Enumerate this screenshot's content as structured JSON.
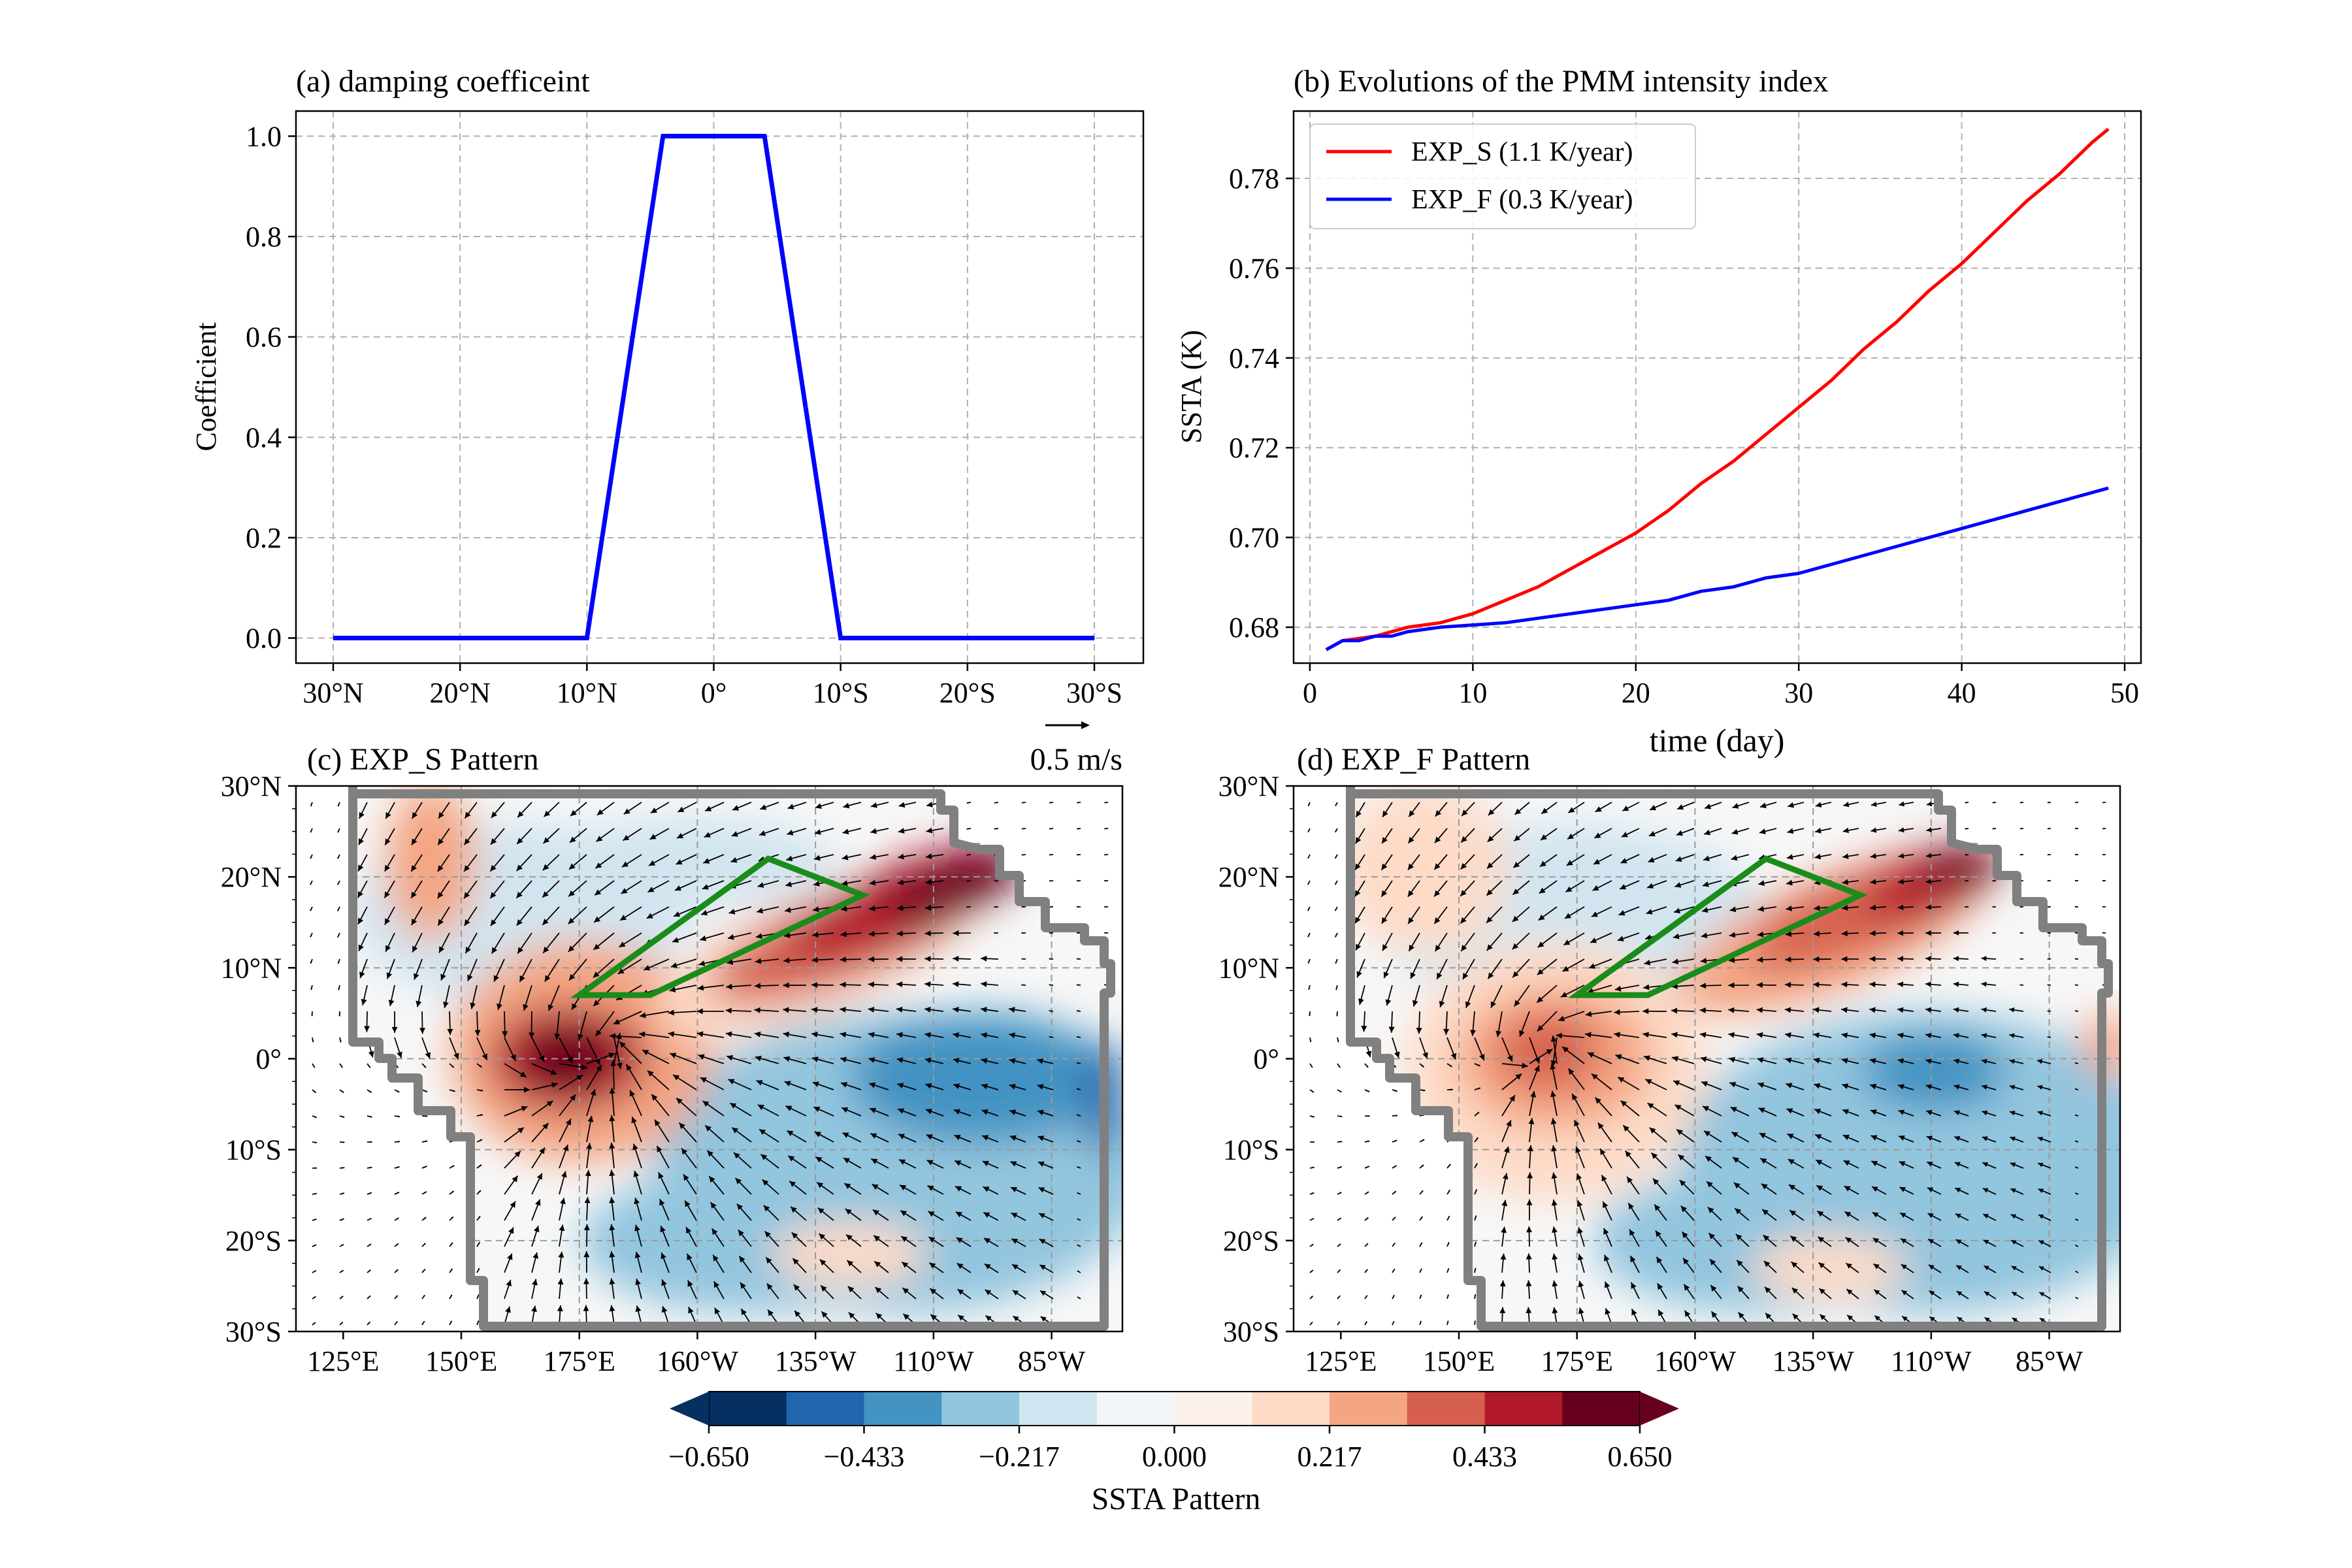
{
  "chart_data": [
    {
      "id": "a",
      "type": "line",
      "title": "(a) damping coefficeint",
      "ylabel": "Coefficient",
      "xlabel": "",
      "x_ticklabels": [
        "30°N",
        "20°N",
        "10°N",
        "0°",
        "10°S",
        "20°S",
        "30°S"
      ],
      "x_tickvalues": [
        30,
        20,
        10,
        0,
        -10,
        -20,
        -30
      ],
      "xlim": [
        30,
        -30
      ],
      "ylim": [
        -0.05,
        1.05
      ],
      "y_ticks": [
        0.0,
        0.2,
        0.4,
        0.6,
        0.8,
        1.0
      ],
      "y_ticklabels": [
        "0.0",
        "0.2",
        "0.4",
        "0.6",
        "0.8",
        "1.0"
      ],
      "grid": true,
      "series": [
        {
          "color": "#0000ff",
          "x": [
            30,
            10,
            4,
            -4,
            -10,
            -30
          ],
          "y": [
            0,
            0,
            1,
            1,
            0,
            0
          ]
        }
      ]
    },
    {
      "id": "b",
      "type": "line",
      "title": "(b) Evolutions of the PMM intensity index",
      "xlabel": "time (day)",
      "ylabel": "SSTA (K)",
      "xlim": [
        -1,
        51
      ],
      "ylim": [
        0.672,
        0.795
      ],
      "x_ticks": [
        0,
        10,
        20,
        30,
        40,
        50
      ],
      "y_ticks": [
        0.68,
        0.7,
        0.72,
        0.74,
        0.76,
        0.78
      ],
      "y_ticklabels": [
        "0.68",
        "0.70",
        "0.72",
        "0.74",
        "0.76",
        "0.78"
      ],
      "grid": true,
      "legend": "top-left",
      "series": [
        {
          "name": "EXP_S (1.1 K/year)",
          "color": "#ff0000",
          "x": [
            1,
            2,
            3,
            4,
            5,
            6,
            8,
            10,
            12,
            14,
            16,
            18,
            20,
            22,
            24,
            26,
            28,
            30,
            32,
            34,
            36,
            38,
            40,
            42,
            44,
            46,
            48,
            49
          ],
          "y": [
            0.675,
            0.677,
            0.6775,
            0.678,
            0.679,
            0.68,
            0.681,
            0.683,
            0.686,
            0.689,
            0.693,
            0.697,
            0.701,
            0.706,
            0.712,
            0.717,
            0.723,
            0.729,
            0.735,
            0.742,
            0.748,
            0.755,
            0.761,
            0.768,
            0.775,
            0.781,
            0.788,
            0.791
          ]
        },
        {
          "name": "EXP_F (0.3 K/year)",
          "color": "#0000ff",
          "x": [
            1,
            2,
            3,
            4,
            5,
            6,
            8,
            10,
            12,
            14,
            16,
            18,
            20,
            22,
            24,
            26,
            28,
            30,
            32,
            34,
            36,
            38,
            40,
            42,
            44,
            46,
            48,
            49
          ],
          "y": [
            0.675,
            0.677,
            0.677,
            0.678,
            0.678,
            0.679,
            0.68,
            0.6805,
            0.681,
            0.682,
            0.683,
            0.684,
            0.685,
            0.686,
            0.688,
            0.689,
            0.691,
            0.692,
            0.694,
            0.696,
            0.698,
            0.7,
            0.702,
            0.704,
            0.706,
            0.708,
            0.71,
            0.711
          ]
        }
      ]
    },
    {
      "id": "c",
      "type": "heatmap",
      "title": "(c) EXP_S Pattern",
      "ref_vector_label": "0.5 m/s",
      "x_ticklabels": [
        "125°E",
        "150°E",
        "175°E",
        "160°W",
        "135°W",
        "110°W",
        "85°W"
      ],
      "y_ticklabels": [
        "30°N",
        "20°N",
        "10°N",
        "0°",
        "10°S",
        "20°S",
        "30°S"
      ],
      "lon_range": [
        115,
        290
      ],
      "lat_range": [
        -30,
        30
      ],
      "grid": true,
      "box_corners_lon_lat": [
        [
          175,
          7
        ],
        [
          215,
          22
        ],
        [
          235,
          18
        ],
        [
          190,
          7
        ]
      ],
      "box_color": "#1a8c1a",
      "wind_convergence_center_lon_lat": [
        185,
        2
      ],
      "note": "SSTA shading approximated; warm tongue from ~150E,0 toward 110W,20N; cold band across southeast Pacific"
    },
    {
      "id": "d",
      "type": "heatmap",
      "title": "(d) EXP_F Pattern",
      "x_ticklabels": [
        "125°E",
        "150°E",
        "175°E",
        "160°W",
        "135°W",
        "110°W",
        "85°W"
      ],
      "y_ticklabels": [
        "30°N",
        "20°N",
        "10°N",
        "0°",
        "10°S",
        "20°S",
        "30°S"
      ],
      "lon_range": [
        115,
        290
      ],
      "lat_range": [
        -30,
        30
      ],
      "grid": true,
      "box_corners_lon_lat": [
        [
          175,
          7
        ],
        [
          215,
          22
        ],
        [
          235,
          18
        ],
        [
          190,
          7
        ]
      ],
      "box_color": "#1a8c1a",
      "wind_convergence_center_lon_lat": [
        172,
        2
      ],
      "note": "weaker warm tongue; cold anomalies in eastern Pacific"
    }
  ],
  "colorbar": {
    "label": "SSTA Pattern",
    "ticklabels": [
      "−0.650",
      "−0.433",
      "−0.217",
      "0.000",
      "0.217",
      "0.433",
      "0.650"
    ],
    "levels": [
      -0.65,
      -0.542,
      -0.433,
      -0.325,
      -0.217,
      -0.108,
      0.0,
      0.108,
      0.217,
      0.325,
      0.433,
      0.542,
      0.65
    ],
    "colors": [
      "#053061",
      "#2166ac",
      "#4393c3",
      "#92c5de",
      "#d1e5f0",
      "#f1f5f8",
      "#fbf0ea",
      "#fddbc7",
      "#f4a582",
      "#d6604d",
      "#b2182b",
      "#67001f"
    ]
  }
}
